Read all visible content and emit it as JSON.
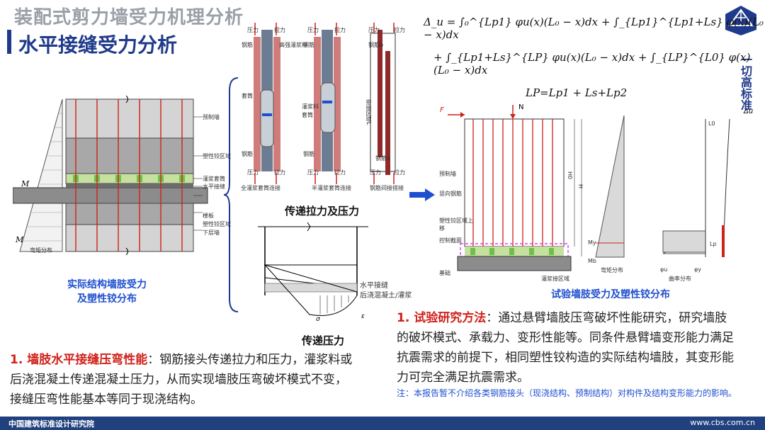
{
  "header": {
    "title": "装配式剪力墙受力机理分析",
    "subtitle": "水平接缝受力分析"
  },
  "logo": {
    "side_text": "一切高标准"
  },
  "left_diagram": {
    "labels": [
      "预制墙",
      "塑性铰区域",
      "灌浆套筒",
      "水平接缝",
      "楼板",
      "塑性铰区域",
      "下层墙"
    ],
    "m_label": "M",
    "m_label2": "M",
    "bottom_label": "弯矩分布",
    "caption_line1": "实际结构墙肢受力",
    "caption_line2": "及塑性铰分布"
  },
  "connectors": {
    "items": [
      {
        "name": "全灌浆套筒连接",
        "top_labels": [
          "压力",
          "拉力"
        ],
        "bottom_labels": [
          "压力",
          "拉力"
        ],
        "side_labels": [
          "钢筋",
          "高强灌浆料",
          "套筒",
          "钢筋"
        ]
      },
      {
        "name": "半灌浆套筒连接",
        "top_labels": [
          "压力",
          "拉力"
        ],
        "bottom_labels": [
          "压力",
          "拉力"
        ],
        "side_labels": [
          "钢筋",
          "灌浆料",
          "套筒",
          "钢筋"
        ]
      },
      {
        "name": "钢筋间接搭接",
        "top_labels": [
          "压力",
          "拉力"
        ],
        "bottom_labels": [
          "压力",
          "拉力"
        ],
        "side_labels": [
          "钢筋b",
          "搭接区域L",
          "钢筋a"
        ]
      }
    ],
    "caption_tension": "传递拉力及压力"
  },
  "stress_diagram": {
    "label1": "水平接缝",
    "label2": "后浇混凝土/灌浆",
    "sigma": "σ",
    "epsilon": "ε",
    "caption": "传递压力"
  },
  "formulas": {
    "delta_u": "Δ_u = ∫₀^{Lp1} φu(x)(L₀ − x)dx + ∫_{Lp1}^{Lp1+Ls} φ(x)(L₀ − x)dx",
    "delta_u2": "+ ∫_{Lp1+Ls}^{LP} φu(x)(L₀ − x)dx + ∫_{LP}^{L0} φ(x)(L₀ − x)dx",
    "lp": "LP=Lp1 + Ls+Lp2"
  },
  "test_diagram": {
    "F": "F",
    "N": "N",
    "labels": [
      "预制墙",
      "竖向钢筋",
      "塑性铰区域上移",
      "控制截面",
      "基础",
      "灌浆接区域"
    ],
    "moment_labels": [
      "My",
      "Mb",
      "弯矩分布"
    ],
    "curvature_labels": [
      "φu",
      "φy",
      "曲率分布"
    ],
    "H0": "H0",
    "H": "H",
    "delta": "Δu",
    "L0": "L0",
    "Lp": "Lp",
    "caption": "试验墙肢受力及塑性铰分布"
  },
  "paragraph_left": {
    "num": "1. ",
    "lead": "墙肢水平接缝压弯性能",
    "text": "：钢筋接头传递拉力和压力，灌浆料或后浇混凝土传递混凝土压力，从而实现墙肢压弯破坏模式不变，接缝压弯性能基本等同于现浇结构。"
  },
  "paragraph_right": {
    "num": "1. ",
    "lead": "试验研究方法",
    "text": "：通过悬臂墙肢压弯破坏性能研究，研究墙肢的破坏模式、承载力、变形性能等。同条件悬臂墙变形能力满足抗震需求的前提下，相同塑性铰构造的实际结构墙肢，其变形能力可完全满足抗震需求。",
    "note": "注：本报告暂不介绍各类钢筋接头（现浇结构、预制结构）对构件及结构变形能力的影响。"
  },
  "footer": {
    "left": "中国建筑标准设计研究院",
    "right": "www.cbs.com.cn"
  },
  "colors": {
    "title_blue": "#1f3a8a",
    "accent_blue": "#1f4fcf",
    "accent_red": "#d0211a",
    "footer": "#20407e"
  }
}
